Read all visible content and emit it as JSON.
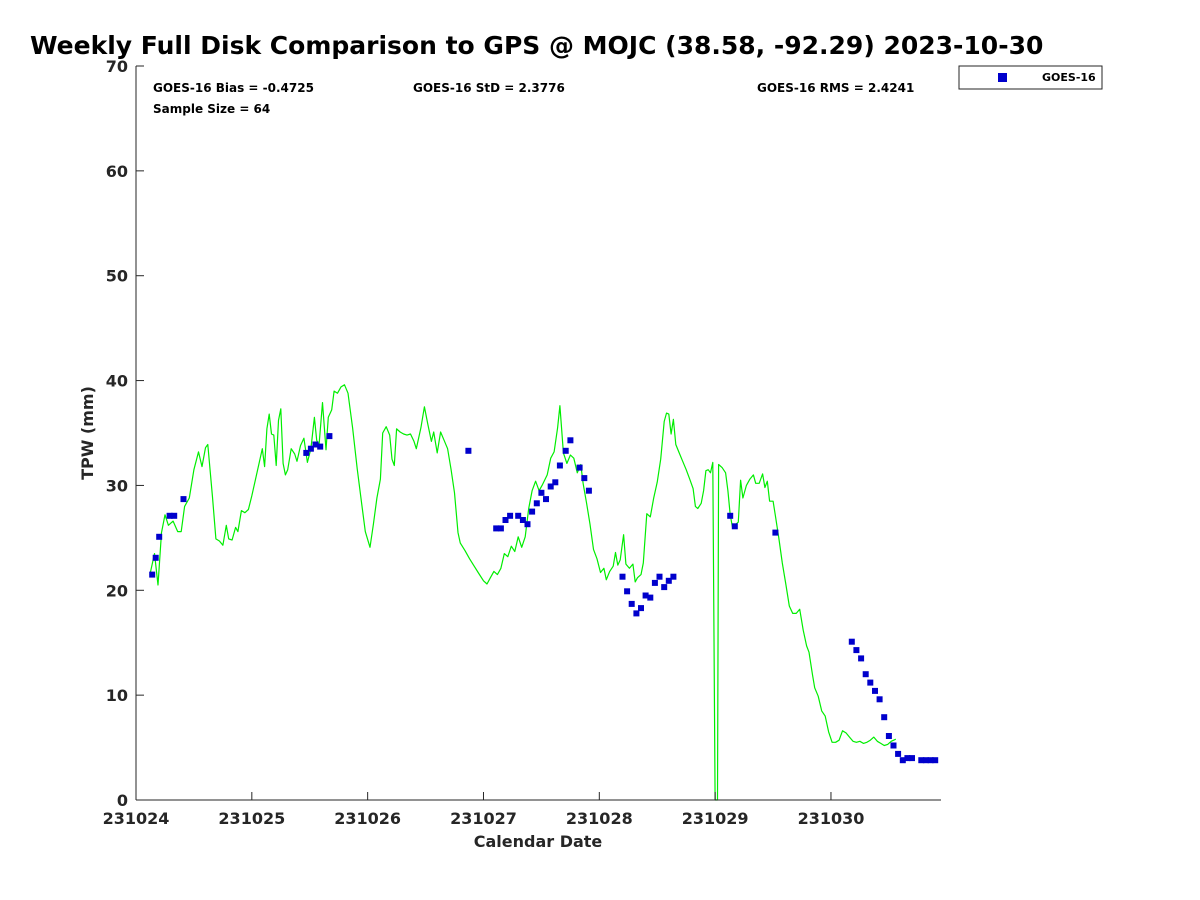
{
  "chart_data": {
    "type": "scatter",
    "title": "Weekly Full Disk Comparison to GPS @ MOJC (38.58, -92.29) 2023-10-30",
    "xlabel": "Calendar Date",
    "ylabel": "TPW (mm)",
    "xlim": [
      0,
      6.95
    ],
    "ylim": [
      0,
      70
    ],
    "x_ticks": [
      {
        "value": 0,
        "label": "231024"
      },
      {
        "value": 1,
        "label": "231025"
      },
      {
        "value": 2,
        "label": "231026"
      },
      {
        "value": 3,
        "label": "231027"
      },
      {
        "value": 4,
        "label": "231028"
      },
      {
        "value": 5,
        "label": "231029"
      },
      {
        "value": 6,
        "label": "231030"
      }
    ],
    "y_ticks": [
      {
        "value": 0,
        "label": "0"
      },
      {
        "value": 10,
        "label": "10"
      },
      {
        "value": 20,
        "label": "20"
      },
      {
        "value": 30,
        "label": "30"
      },
      {
        "value": 40,
        "label": "40"
      },
      {
        "value": 50,
        "label": "50"
      },
      {
        "value": 60,
        "label": "60"
      },
      {
        "value": 70,
        "label": "70"
      }
    ],
    "stats": {
      "bias": "GOES-16 Bias = -0.4725",
      "std": "GOES-16 StD = 2.3776",
      "rms": "GOES-16 RMS = 2.4241",
      "sample": "Sample Size = 64"
    },
    "legend": [
      {
        "name": "GOES-16",
        "color": "#0000cc",
        "marker": "square"
      }
    ],
    "series": [
      {
        "name": "GPS",
        "style": "line",
        "color": "#00ee00",
        "points": [
          [
            0.12,
            21.5
          ],
          [
            0.16,
            23.5
          ],
          [
            0.19,
            20.5
          ],
          [
            0.22,
            25.5
          ],
          [
            0.25,
            27.2
          ],
          [
            0.28,
            26.2
          ],
          [
            0.32,
            26.6
          ],
          [
            0.36,
            25.6
          ],
          [
            0.39,
            25.6
          ],
          [
            0.42,
            28.0
          ],
          [
            0.46,
            28.8
          ],
          [
            0.5,
            31.5
          ],
          [
            0.54,
            33.2
          ],
          [
            0.57,
            31.8
          ],
          [
            0.6,
            33.6
          ],
          [
            0.62,
            33.9
          ],
          [
            0.66,
            29.0
          ],
          [
            0.69,
            24.9
          ],
          [
            0.72,
            24.7
          ],
          [
            0.75,
            24.3
          ],
          [
            0.78,
            26.2
          ],
          [
            0.8,
            24.9
          ],
          [
            0.83,
            24.8
          ],
          [
            0.86,
            26.0
          ],
          [
            0.88,
            25.6
          ],
          [
            0.91,
            27.6
          ],
          [
            0.94,
            27.4
          ],
          [
            0.97,
            27.7
          ],
          [
            1.0,
            29.0
          ],
          [
            1.03,
            30.5
          ],
          [
            1.06,
            32.0
          ],
          [
            1.09,
            33.5
          ],
          [
            1.11,
            31.8
          ],
          [
            1.13,
            35.4
          ],
          [
            1.15,
            36.8
          ],
          [
            1.17,
            34.9
          ],
          [
            1.19,
            34.8
          ],
          [
            1.21,
            31.9
          ],
          [
            1.23,
            36.2
          ],
          [
            1.25,
            37.3
          ],
          [
            1.27,
            32.1
          ],
          [
            1.29,
            31.0
          ],
          [
            1.31,
            31.5
          ],
          [
            1.34,
            33.5
          ],
          [
            1.37,
            33.0
          ],
          [
            1.39,
            32.3
          ],
          [
            1.42,
            33.8
          ],
          [
            1.45,
            34.5
          ],
          [
            1.48,
            32.2
          ],
          [
            1.51,
            33.5
          ],
          [
            1.54,
            36.5
          ],
          [
            1.56,
            34.3
          ],
          [
            1.58,
            33.8
          ],
          [
            1.61,
            37.9
          ],
          [
            1.64,
            33.4
          ],
          [
            1.66,
            36.5
          ],
          [
            1.69,
            37.2
          ],
          [
            1.71,
            39.0
          ],
          [
            1.74,
            38.8
          ],
          [
            1.77,
            39.4
          ],
          [
            1.8,
            39.6
          ],
          [
            1.83,
            38.8
          ],
          [
            1.87,
            35.5
          ],
          [
            1.91,
            31.6
          ],
          [
            1.95,
            28.1
          ],
          [
            1.98,
            25.6
          ],
          [
            2.02,
            24.1
          ],
          [
            2.05,
            26.3
          ],
          [
            2.08,
            28.8
          ],
          [
            2.11,
            30.6
          ],
          [
            2.13,
            35.0
          ],
          [
            2.16,
            35.6
          ],
          [
            2.19,
            34.8
          ],
          [
            2.21,
            32.5
          ],
          [
            2.23,
            31.9
          ],
          [
            2.25,
            35.4
          ],
          [
            2.28,
            35.1
          ],
          [
            2.31,
            34.9
          ],
          [
            2.34,
            34.8
          ],
          [
            2.37,
            34.9
          ],
          [
            2.4,
            34.2
          ],
          [
            2.42,
            33.5
          ],
          [
            2.46,
            35.5
          ],
          [
            2.49,
            37.5
          ],
          [
            2.52,
            35.8
          ],
          [
            2.55,
            34.2
          ],
          [
            2.57,
            35.1
          ],
          [
            2.6,
            33.1
          ],
          [
            2.63,
            35.1
          ],
          [
            2.66,
            34.3
          ],
          [
            2.69,
            33.5
          ],
          [
            2.72,
            31.5
          ],
          [
            2.75,
            29.3
          ],
          [
            2.78,
            25.5
          ],
          [
            2.8,
            24.5
          ],
          [
            2.84,
            23.8
          ],
          [
            2.88,
            23.0
          ],
          [
            2.92,
            22.3
          ],
          [
            2.96,
            21.6
          ],
          [
            3.0,
            20.9
          ],
          [
            3.03,
            20.6
          ],
          [
            3.06,
            21.2
          ],
          [
            3.09,
            21.8
          ],
          [
            3.12,
            21.5
          ],
          [
            3.15,
            22.1
          ],
          [
            3.18,
            23.5
          ],
          [
            3.21,
            23.2
          ],
          [
            3.24,
            24.2
          ],
          [
            3.27,
            23.7
          ],
          [
            3.3,
            25.1
          ],
          [
            3.33,
            24.1
          ],
          [
            3.36,
            25.1
          ],
          [
            3.39,
            27.8
          ],
          [
            3.42,
            29.5
          ],
          [
            3.45,
            30.4
          ],
          [
            3.48,
            29.5
          ],
          [
            3.51,
            30.1
          ],
          [
            3.55,
            31.0
          ],
          [
            3.58,
            32.6
          ],
          [
            3.61,
            33.2
          ],
          [
            3.64,
            35.5
          ],
          [
            3.66,
            37.6
          ],
          [
            3.69,
            33.1
          ],
          [
            3.72,
            32.1
          ],
          [
            3.75,
            32.9
          ],
          [
            3.78,
            32.6
          ],
          [
            3.81,
            31.2
          ],
          [
            3.84,
            32.0
          ],
          [
            3.86,
            30.2
          ],
          [
            3.89,
            28.3
          ],
          [
            3.92,
            26.3
          ],
          [
            3.95,
            23.9
          ],
          [
            3.98,
            23.0
          ],
          [
            4.01,
            21.7
          ],
          [
            4.04,
            22.1
          ],
          [
            4.06,
            21.0
          ],
          [
            4.09,
            21.8
          ],
          [
            4.12,
            22.3
          ],
          [
            4.14,
            23.6
          ],
          [
            4.16,
            22.4
          ],
          [
            4.18,
            22.9
          ],
          [
            4.21,
            25.3
          ],
          [
            4.23,
            22.5
          ],
          [
            4.26,
            22.1
          ],
          [
            4.29,
            22.5
          ],
          [
            4.31,
            20.8
          ],
          [
            4.33,
            21.2
          ],
          [
            4.36,
            21.5
          ],
          [
            4.38,
            22.6
          ],
          [
            4.41,
            27.3
          ],
          [
            4.44,
            27.0
          ],
          [
            4.47,
            28.8
          ],
          [
            4.5,
            30.3
          ],
          [
            4.53,
            32.5
          ],
          [
            4.56,
            36.1
          ],
          [
            4.58,
            36.9
          ],
          [
            4.6,
            36.8
          ],
          [
            4.62,
            34.9
          ],
          [
            4.64,
            36.3
          ],
          [
            4.66,
            33.9
          ],
          [
            4.69,
            33.1
          ],
          [
            4.72,
            32.3
          ],
          [
            4.75,
            31.5
          ],
          [
            4.78,
            30.6
          ],
          [
            4.81,
            29.7
          ],
          [
            4.83,
            28.0
          ],
          [
            4.85,
            27.8
          ],
          [
            4.88,
            28.3
          ],
          [
            4.9,
            29.5
          ],
          [
            4.92,
            31.4
          ],
          [
            4.94,
            31.5
          ],
          [
            4.96,
            31.2
          ],
          [
            4.98,
            32.2
          ],
          [
            5.0,
            0.0
          ],
          [
            5.02,
            0.0
          ],
          [
            5.03,
            32.0
          ],
          [
            5.06,
            31.7
          ],
          [
            5.09,
            31.2
          ],
          [
            5.11,
            29.5
          ],
          [
            5.13,
            27.2
          ],
          [
            5.15,
            26.0
          ],
          [
            5.18,
            26.3
          ],
          [
            5.2,
            26.5
          ],
          [
            5.22,
            30.5
          ],
          [
            5.24,
            28.8
          ],
          [
            5.27,
            30.0
          ],
          [
            5.3,
            30.6
          ],
          [
            5.33,
            31.0
          ],
          [
            5.35,
            30.2
          ],
          [
            5.38,
            30.2
          ],
          [
            5.41,
            31.1
          ],
          [
            5.43,
            29.8
          ],
          [
            5.45,
            30.4
          ],
          [
            5.47,
            28.5
          ],
          [
            5.5,
            28.5
          ],
          [
            5.52,
            27.1
          ],
          [
            5.55,
            25.0
          ],
          [
            5.58,
            22.6
          ],
          [
            5.61,
            20.6
          ],
          [
            5.64,
            18.5
          ],
          [
            5.67,
            17.8
          ],
          [
            5.7,
            17.8
          ],
          [
            5.73,
            18.2
          ],
          [
            5.76,
            16.2
          ],
          [
            5.79,
            14.7
          ],
          [
            5.81,
            14.1
          ],
          [
            5.84,
            12.0
          ],
          [
            5.86,
            10.7
          ],
          [
            5.89,
            9.9
          ],
          [
            5.92,
            8.5
          ],
          [
            5.95,
            8.0
          ],
          [
            5.98,
            6.5
          ],
          [
            6.01,
            5.5
          ],
          [
            6.04,
            5.5
          ],
          [
            6.07,
            5.7
          ],
          [
            6.1,
            6.6
          ],
          [
            6.13,
            6.4
          ],
          [
            6.16,
            6.0
          ],
          [
            6.19,
            5.6
          ],
          [
            6.22,
            5.5
          ],
          [
            6.25,
            5.6
          ],
          [
            6.28,
            5.4
          ],
          [
            6.31,
            5.5
          ],
          [
            6.34,
            5.7
          ],
          [
            6.37,
            6.0
          ],
          [
            6.4,
            5.6
          ],
          [
            6.43,
            5.4
          ],
          [
            6.46,
            5.2
          ],
          [
            6.49,
            5.3
          ],
          [
            6.52,
            5.6
          ],
          [
            6.56,
            5.8
          ]
        ]
      },
      {
        "name": "GOES-16",
        "style": "marker",
        "color": "#0000cc",
        "points": [
          [
            0.14,
            21.5
          ],
          [
            0.17,
            23.1
          ],
          [
            0.2,
            25.1
          ],
          [
            0.29,
            27.1
          ],
          [
            0.33,
            27.1
          ],
          [
            0.41,
            28.7
          ],
          [
            1.47,
            33.1
          ],
          [
            1.51,
            33.5
          ],
          [
            1.55,
            33.9
          ],
          [
            1.59,
            33.7
          ],
          [
            1.67,
            34.7
          ],
          [
            2.87,
            33.3
          ],
          [
            3.11,
            25.9
          ],
          [
            3.15,
            25.9
          ],
          [
            3.19,
            26.7
          ],
          [
            3.23,
            27.1
          ],
          [
            3.3,
            27.1
          ],
          [
            3.34,
            26.7
          ],
          [
            3.38,
            26.3
          ],
          [
            3.42,
            27.5
          ],
          [
            3.46,
            28.3
          ],
          [
            3.5,
            29.3
          ],
          [
            3.54,
            28.7
          ],
          [
            3.58,
            29.9
          ],
          [
            3.62,
            30.3
          ],
          [
            3.66,
            31.9
          ],
          [
            3.71,
            33.3
          ],
          [
            3.75,
            34.3
          ],
          [
            3.83,
            31.7
          ],
          [
            3.87,
            30.7
          ],
          [
            3.91,
            29.5
          ],
          [
            4.2,
            21.3
          ],
          [
            4.24,
            19.9
          ],
          [
            4.28,
            18.7
          ],
          [
            4.32,
            17.8
          ],
          [
            4.36,
            18.3
          ],
          [
            4.4,
            19.5
          ],
          [
            4.44,
            19.3
          ],
          [
            4.48,
            20.7
          ],
          [
            4.52,
            21.3
          ],
          [
            4.56,
            20.3
          ],
          [
            4.6,
            20.9
          ],
          [
            4.64,
            21.3
          ],
          [
            5.13,
            27.1
          ],
          [
            5.17,
            26.1
          ],
          [
            5.52,
            25.5
          ],
          [
            6.18,
            15.1
          ],
          [
            6.22,
            14.3
          ],
          [
            6.26,
            13.5
          ],
          [
            6.3,
            12.0
          ],
          [
            6.34,
            11.2
          ],
          [
            6.38,
            10.4
          ],
          [
            6.42,
            9.6
          ],
          [
            6.46,
            7.9
          ],
          [
            6.5,
            6.1
          ],
          [
            6.54,
            5.2
          ],
          [
            6.58,
            4.4
          ],
          [
            6.62,
            3.8
          ],
          [
            6.66,
            4.0
          ],
          [
            6.7,
            4.0
          ],
          [
            6.78,
            3.8
          ],
          [
            6.82,
            3.8
          ],
          [
            6.86,
            3.8
          ],
          [
            6.9,
            3.8
          ]
        ]
      }
    ]
  }
}
